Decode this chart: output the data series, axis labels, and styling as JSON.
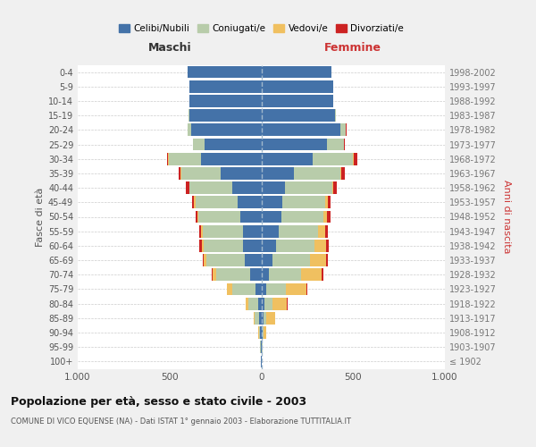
{
  "age_groups": [
    "100+",
    "95-99",
    "90-94",
    "85-89",
    "80-84",
    "75-79",
    "70-74",
    "65-69",
    "60-64",
    "55-59",
    "50-54",
    "45-49",
    "40-44",
    "35-39",
    "30-34",
    "25-29",
    "20-24",
    "15-19",
    "10-14",
    "5-9",
    "0-4"
  ],
  "birth_years": [
    "≤ 1902",
    "1903-1907",
    "1908-1912",
    "1913-1917",
    "1918-1922",
    "1923-1927",
    "1928-1932",
    "1933-1937",
    "1938-1942",
    "1943-1947",
    "1948-1952",
    "1953-1957",
    "1958-1962",
    "1963-1967",
    "1968-1972",
    "1973-1977",
    "1978-1982",
    "1983-1987",
    "1988-1992",
    "1993-1997",
    "1998-2002"
  ],
  "males": {
    "celibi": [
      2,
      3,
      5,
      10,
      15,
      30,
      60,
      90,
      100,
      100,
      115,
      130,
      160,
      220,
      330,
      310,
      380,
      390,
      390,
      390,
      400
    ],
    "coniugati": [
      0,
      2,
      8,
      25,
      55,
      130,
      185,
      210,
      215,
      220,
      230,
      230,
      230,
      215,
      175,
      60,
      20,
      5,
      0,
      0,
      0
    ],
    "vedovi": [
      0,
      0,
      3,
      8,
      15,
      25,
      20,
      12,
      10,
      8,
      5,
      5,
      4,
      3,
      2,
      1,
      0,
      0,
      0,
      0,
      0
    ],
    "divorziati": [
      0,
      0,
      0,
      0,
      0,
      2,
      3,
      5,
      12,
      12,
      10,
      12,
      15,
      12,
      8,
      2,
      1,
      0,
      0,
      0,
      0
    ]
  },
  "females": {
    "nubili": [
      2,
      3,
      5,
      10,
      15,
      25,
      40,
      60,
      80,
      95,
      110,
      115,
      130,
      180,
      280,
      360,
      430,
      400,
      390,
      390,
      380
    ],
    "coniugate": [
      0,
      2,
      5,
      18,
      45,
      110,
      175,
      205,
      210,
      215,
      230,
      235,
      255,
      250,
      220,
      90,
      30,
      5,
      0,
      0,
      0
    ],
    "vedove": [
      0,
      2,
      15,
      45,
      80,
      110,
      115,
      90,
      65,
      40,
      20,
      12,
      8,
      5,
      3,
      2,
      1,
      0,
      0,
      0,
      0
    ],
    "divorziate": [
      0,
      0,
      0,
      2,
      2,
      5,
      8,
      8,
      12,
      12,
      18,
      15,
      18,
      20,
      18,
      5,
      2,
      0,
      0,
      0,
      0
    ]
  },
  "colors": {
    "celibi_nubili": "#4472a8",
    "coniugati": "#b8ccaa",
    "vedovi": "#f0c060",
    "divorziati": "#cc2222"
  },
  "xlim": 1000,
  "title": "Popolazione per età, sesso e stato civile - 2003",
  "subtitle": "COMUNE DI VICO EQUENSE (NA) - Dati ISTAT 1° gennaio 2003 - Elaborazione TUTTITALIA.IT",
  "xlabel_left": "Maschi",
  "xlabel_right": "Femmine",
  "ylabel_left": "Fasce di età",
  "ylabel_right": "Anni di nascita",
  "legend_labels": [
    "Celibi/Nubili",
    "Coniugati/e",
    "Vedovi/e",
    "Divorziati/e"
  ],
  "bg_color": "#f0f0f0",
  "plot_bg": "#ffffff"
}
